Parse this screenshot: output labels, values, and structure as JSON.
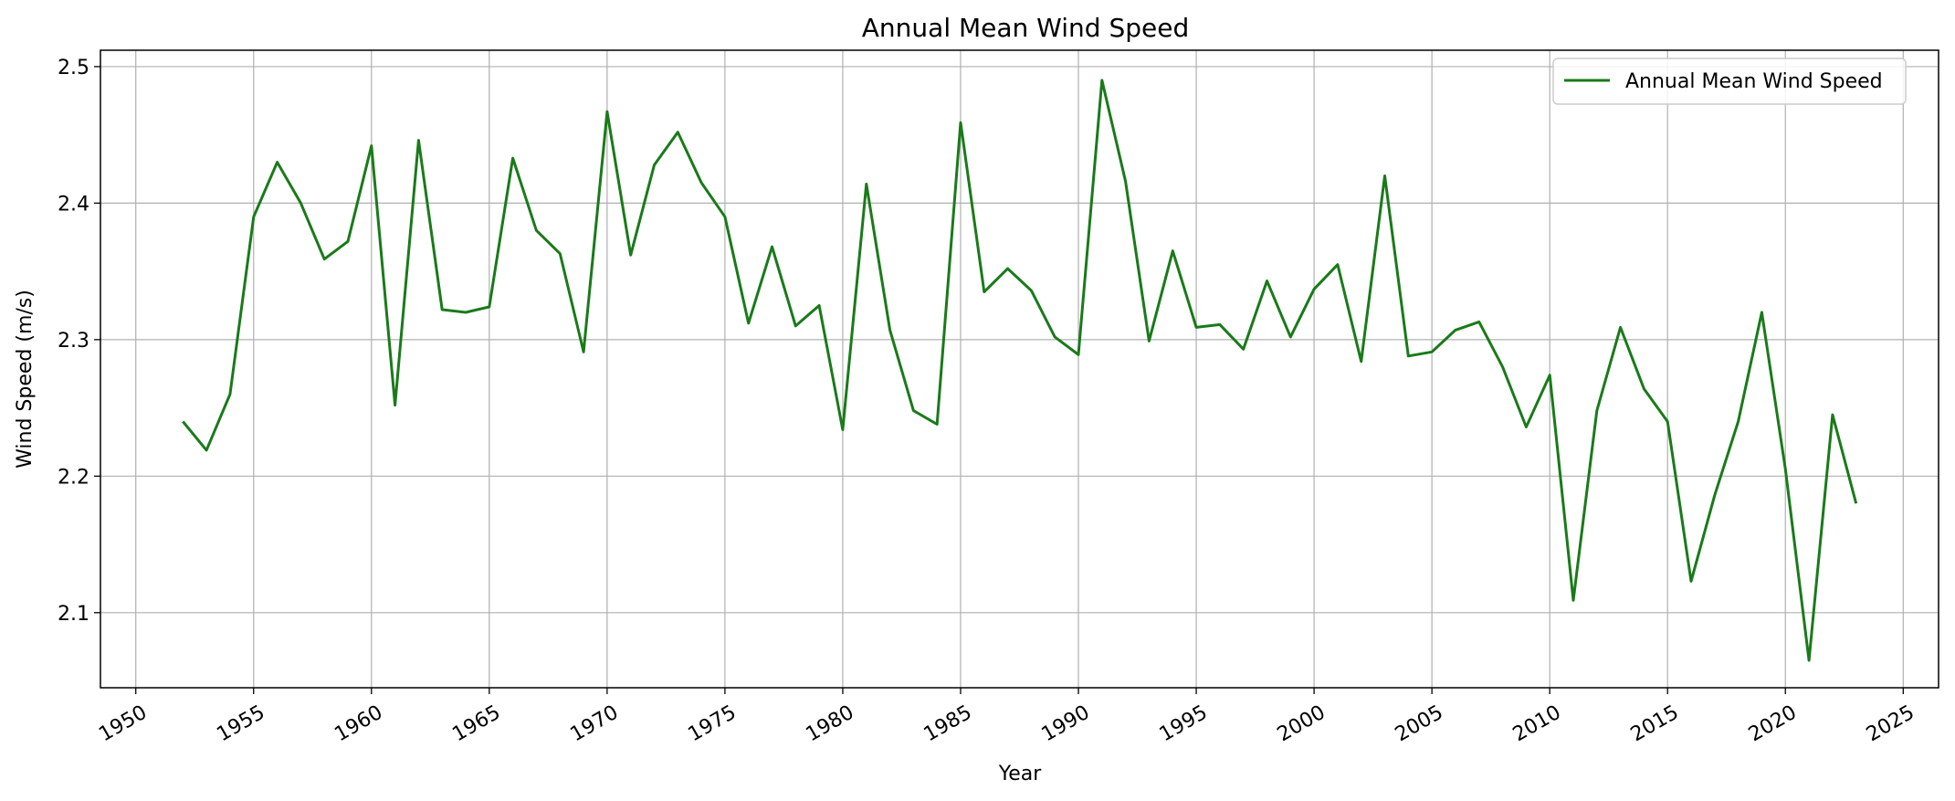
{
  "chart_data": {
    "type": "line",
    "title": "Annual Mean Wind Speed",
    "xlabel": "Year",
    "ylabel": "Wind Speed (m/s)",
    "xlim": [
      1948.5,
      2026.5
    ],
    "ylim": [
      2.045,
      2.512
    ],
    "xticks": [
      1950,
      1955,
      1960,
      1965,
      1970,
      1975,
      1980,
      1985,
      1990,
      1995,
      2000,
      2005,
      2010,
      2015,
      2020,
      2025
    ],
    "yticks": [
      2.1,
      2.2,
      2.3,
      2.4,
      2.5
    ],
    "ytick_labels": [
      "2.1",
      "2.2",
      "2.3",
      "2.4",
      "2.5"
    ],
    "grid": true,
    "legend_position": "top-right",
    "series": [
      {
        "name": "Annual Mean Wind Speed",
        "color": "#1a7a1a",
        "x": [
          1952,
          1953,
          1954,
          1955,
          1956,
          1957,
          1958,
          1959,
          1960,
          1961,
          1962,
          1963,
          1964,
          1965,
          1966,
          1967,
          1968,
          1969,
          1970,
          1971,
          1972,
          1973,
          1974,
          1975,
          1976,
          1977,
          1978,
          1979,
          1980,
          1981,
          1982,
          1983,
          1984,
          1985,
          1986,
          1987,
          1988,
          1989,
          1990,
          1991,
          1992,
          1993,
          1994,
          1995,
          1996,
          1997,
          1998,
          1999,
          2000,
          2001,
          2002,
          2003,
          2004,
          2005,
          2006,
          2007,
          2008,
          2009,
          2010,
          2011,
          2012,
          2013,
          2014,
          2015,
          2016,
          2017,
          2018,
          2019,
          2020,
          2021,
          2022,
          2023
        ],
        "y": [
          2.24,
          2.219,
          2.26,
          2.39,
          2.43,
          2.4,
          2.359,
          2.372,
          2.442,
          2.252,
          2.446,
          2.322,
          2.32,
          2.324,
          2.433,
          2.38,
          2.363,
          2.291,
          2.467,
          2.362,
          2.428,
          2.452,
          2.415,
          2.39,
          2.312,
          2.368,
          2.31,
          2.325,
          2.234,
          2.414,
          2.307,
          2.248,
          2.238,
          2.459,
          2.335,
          2.352,
          2.336,
          2.302,
          2.289,
          2.49,
          2.416,
          2.299,
          2.365,
          2.309,
          2.311,
          2.293,
          2.343,
          2.302,
          2.337,
          2.355,
          2.284,
          2.42,
          2.288,
          2.291,
          2.307,
          2.313,
          2.28,
          2.236,
          2.274,
          2.109,
          2.248,
          2.309,
          2.264,
          2.24,
          2.123,
          2.186,
          2.24,
          2.32,
          2.205,
          2.065,
          2.245,
          2.18
        ]
      }
    ]
  }
}
